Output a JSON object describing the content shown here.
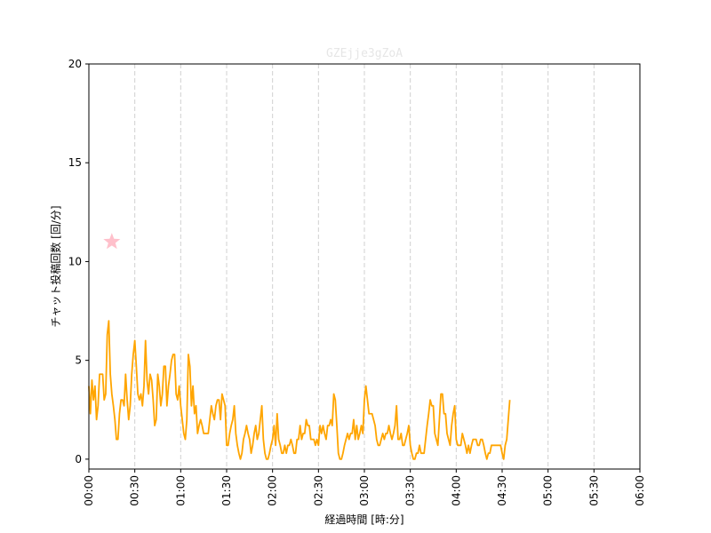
{
  "chart_data": {
    "type": "line",
    "title": "GZEjje3gZoA",
    "xlabel": "経過時間 [時:分]",
    "ylabel": "チャット投稿回数 [回/分]",
    "xlim": [
      0,
      360
    ],
    "ylim": [
      -0.5,
      20
    ],
    "x_ticks": [
      {
        "value": 0,
        "label": "00:00"
      },
      {
        "value": 30,
        "label": "00:30"
      },
      {
        "value": 60,
        "label": "01:00"
      },
      {
        "value": 90,
        "label": "01:30"
      },
      {
        "value": 120,
        "label": "02:00"
      },
      {
        "value": 150,
        "label": "02:30"
      },
      {
        "value": 180,
        "label": "03:00"
      },
      {
        "value": 210,
        "label": "03:30"
      },
      {
        "value": 240,
        "label": "04:00"
      },
      {
        "value": 270,
        "label": "04:30"
      },
      {
        "value": 300,
        "label": "05:00"
      },
      {
        "value": 330,
        "label": "05:30"
      },
      {
        "value": 360,
        "label": "06:00"
      }
    ],
    "y_ticks": [
      0,
      5,
      10,
      15,
      20
    ],
    "grid": "vertical dashed",
    "series": [
      {
        "color": "#FFA500",
        "points": [
          [
            0,
            3.7
          ],
          [
            1,
            2.3
          ],
          [
            2,
            4.0
          ],
          [
            3,
            3.0
          ],
          [
            4,
            3.7
          ],
          [
            5,
            2.0
          ],
          [
            6,
            2.7
          ],
          [
            7,
            4.3
          ],
          [
            8,
            4.3
          ],
          [
            9,
            4.3
          ],
          [
            10,
            3.0
          ],
          [
            11,
            3.3
          ],
          [
            12,
            6.3
          ],
          [
            13,
            7.0
          ],
          [
            14,
            4.3
          ],
          [
            15,
            3.3
          ],
          [
            16,
            2.7
          ],
          [
            17,
            2.0
          ],
          [
            18,
            1.0
          ],
          [
            19,
            1.0
          ],
          [
            20,
            2.3
          ],
          [
            21,
            3.0
          ],
          [
            22,
            3.0
          ],
          [
            23,
            2.7
          ],
          [
            24,
            4.3
          ],
          [
            25,
            3.0
          ],
          [
            26,
            2.0
          ],
          [
            27,
            2.7
          ],
          [
            28,
            4.3
          ],
          [
            29,
            5.3
          ],
          [
            30,
            6.0
          ],
          [
            31,
            4.7
          ],
          [
            32,
            3.3
          ],
          [
            33,
            3.0
          ],
          [
            34,
            3.3
          ],
          [
            35,
            2.7
          ],
          [
            36,
            3.7
          ],
          [
            37,
            6.0
          ],
          [
            38,
            4.0
          ],
          [
            39,
            3.3
          ],
          [
            40,
            4.3
          ],
          [
            41,
            4.0
          ],
          [
            42,
            3.0
          ],
          [
            43,
            1.7
          ],
          [
            44,
            2.0
          ],
          [
            45,
            4.3
          ],
          [
            46,
            3.7
          ],
          [
            47,
            2.7
          ],
          [
            48,
            3.3
          ],
          [
            49,
            4.7
          ],
          [
            50,
            4.7
          ],
          [
            51,
            2.7
          ],
          [
            52,
            3.7
          ],
          [
            53,
            4.3
          ],
          [
            54,
            5.0
          ],
          [
            55,
            5.3
          ],
          [
            56,
            5.3
          ],
          [
            57,
            3.3
          ],
          [
            58,
            3.0
          ],
          [
            59,
            3.7
          ],
          [
            60,
            2.7
          ],
          [
            61,
            2.0
          ],
          [
            62,
            1.3
          ],
          [
            63,
            1.0
          ],
          [
            64,
            2.0
          ],
          [
            65,
            5.3
          ],
          [
            66,
            4.7
          ],
          [
            67,
            2.7
          ],
          [
            68,
            3.7
          ],
          [
            69,
            2.3
          ],
          [
            70,
            2.7
          ],
          [
            71,
            1.3
          ],
          [
            72,
            1.7
          ],
          [
            73,
            2.0
          ],
          [
            74,
            1.7
          ],
          [
            75,
            1.3
          ],
          [
            76,
            1.3
          ],
          [
            77,
            1.3
          ],
          [
            78,
            1.3
          ],
          [
            79,
            2.0
          ],
          [
            80,
            2.7
          ],
          [
            81,
            2.3
          ],
          [
            82,
            2.0
          ],
          [
            83,
            2.7
          ],
          [
            84,
            3.0
          ],
          [
            85,
            3.0
          ],
          [
            86,
            2.0
          ],
          [
            87,
            3.3
          ],
          [
            88,
            3.0
          ],
          [
            89,
            2.7
          ],
          [
            90,
            0.7
          ],
          [
            91,
            0.7
          ],
          [
            92,
            1.3
          ],
          [
            93,
            1.7
          ],
          [
            94,
            2.0
          ],
          [
            95,
            2.7
          ],
          [
            96,
            1.3
          ],
          [
            97,
            0.7
          ],
          [
            98,
            0.3
          ],
          [
            99,
            0.0
          ],
          [
            100,
            0.3
          ],
          [
            101,
            1.0
          ],
          [
            102,
            1.3
          ],
          [
            103,
            1.7
          ],
          [
            104,
            1.3
          ],
          [
            105,
            1.0
          ],
          [
            106,
            0.3
          ],
          [
            107,
            0.7
          ],
          [
            108,
            1.3
          ],
          [
            109,
            1.7
          ],
          [
            110,
            1.0
          ],
          [
            111,
            1.3
          ],
          [
            112,
            2.0
          ],
          [
            113,
            2.7
          ],
          [
            114,
            1.0
          ],
          [
            115,
            0.3
          ],
          [
            116,
            0.0
          ],
          [
            117,
            0.0
          ],
          [
            118,
            0.3
          ],
          [
            119,
            0.7
          ],
          [
            120,
            1.0
          ],
          [
            121,
            1.7
          ],
          [
            122,
            0.7
          ],
          [
            123,
            2.3
          ],
          [
            124,
            1.0
          ],
          [
            125,
            0.7
          ],
          [
            126,
            0.3
          ],
          [
            127,
            0.3
          ],
          [
            128,
            0.7
          ],
          [
            129,
            0.3
          ],
          [
            130,
            0.7
          ],
          [
            131,
            0.7
          ],
          [
            132,
            1.0
          ],
          [
            133,
            0.7
          ],
          [
            134,
            0.3
          ],
          [
            135,
            0.3
          ],
          [
            136,
            1.0
          ],
          [
            137,
            1.0
          ],
          [
            138,
            1.7
          ],
          [
            139,
            1.0
          ],
          [
            140,
            1.3
          ],
          [
            141,
            1.3
          ],
          [
            142,
            2.0
          ],
          [
            143,
            1.7
          ],
          [
            144,
            1.7
          ],
          [
            145,
            1.0
          ],
          [
            146,
            1.0
          ],
          [
            147,
            1.0
          ],
          [
            148,
            0.7
          ],
          [
            149,
            1.0
          ],
          [
            150,
            0.7
          ],
          [
            151,
            1.7
          ],
          [
            152,
            1.3
          ],
          [
            153,
            1.7
          ],
          [
            154,
            1.3
          ],
          [
            155,
            1.0
          ],
          [
            156,
            1.7
          ],
          [
            157,
            1.7
          ],
          [
            158,
            2.0
          ],
          [
            159,
            1.7
          ],
          [
            160,
            3.3
          ],
          [
            161,
            3.0
          ],
          [
            162,
            1.7
          ],
          [
            163,
            0.3
          ],
          [
            164,
            0.0
          ],
          [
            165,
            0.0
          ],
          [
            166,
            0.3
          ],
          [
            167,
            0.7
          ],
          [
            168,
            1.0
          ],
          [
            169,
            1.3
          ],
          [
            170,
            1.0
          ],
          [
            171,
            1.3
          ],
          [
            172,
            1.3
          ],
          [
            173,
            2.0
          ],
          [
            174,
            1.0
          ],
          [
            175,
            1.7
          ],
          [
            176,
            1.0
          ],
          [
            177,
            1.3
          ],
          [
            178,
            1.7
          ],
          [
            179,
            1.3
          ],
          [
            180,
            3.0
          ],
          [
            181,
            3.7
          ],
          [
            182,
            3.0
          ],
          [
            183,
            2.3
          ],
          [
            184,
            2.3
          ],
          [
            185,
            2.3
          ],
          [
            186,
            2.0
          ],
          [
            187,
            1.7
          ],
          [
            188,
            1.0
          ],
          [
            189,
            0.7
          ],
          [
            190,
            0.7
          ],
          [
            191,
            1.0
          ],
          [
            192,
            1.3
          ],
          [
            193,
            1.0
          ],
          [
            194,
            1.3
          ],
          [
            195,
            1.3
          ],
          [
            196,
            1.7
          ],
          [
            197,
            1.3
          ],
          [
            198,
            1.0
          ],
          [
            199,
            1.3
          ],
          [
            200,
            1.7
          ],
          [
            201,
            2.7
          ],
          [
            202,
            1.0
          ],
          [
            203,
            1.0
          ],
          [
            204,
            1.3
          ],
          [
            205,
            0.7
          ],
          [
            206,
            0.7
          ],
          [
            207,
            1.0
          ],
          [
            208,
            1.3
          ],
          [
            209,
            1.7
          ],
          [
            210,
            0.7
          ],
          [
            211,
            0.3
          ],
          [
            212,
            0.0
          ],
          [
            213,
            0.0
          ],
          [
            214,
            0.3
          ],
          [
            215,
            0.3
          ],
          [
            216,
            0.7
          ],
          [
            217,
            0.3
          ],
          [
            218,
            0.3
          ],
          [
            219,
            0.3
          ],
          [
            220,
            1.0
          ],
          [
            221,
            1.7
          ],
          [
            222,
            2.3
          ],
          [
            223,
            3.0
          ],
          [
            224,
            2.7
          ],
          [
            225,
            2.7
          ],
          [
            226,
            1.3
          ],
          [
            227,
            1.0
          ],
          [
            228,
            0.7
          ],
          [
            229,
            2.0
          ],
          [
            230,
            3.3
          ],
          [
            231,
            3.3
          ],
          [
            232,
            2.3
          ],
          [
            233,
            2.3
          ],
          [
            234,
            1.3
          ],
          [
            235,
            1.0
          ],
          [
            236,
            0.7
          ],
          [
            237,
            1.7
          ],
          [
            238,
            2.3
          ],
          [
            239,
            2.7
          ],
          [
            240,
            1.0
          ],
          [
            241,
            0.7
          ],
          [
            242,
            0.7
          ],
          [
            243,
            0.7
          ],
          [
            244,
            1.3
          ],
          [
            245,
            1.0
          ],
          [
            246,
            0.7
          ],
          [
            247,
            0.3
          ],
          [
            248,
            0.7
          ],
          [
            249,
            0.3
          ],
          [
            250,
            0.7
          ],
          [
            251,
            1.0
          ],
          [
            252,
            1.0
          ],
          [
            253,
            1.0
          ],
          [
            254,
            0.7
          ],
          [
            255,
            0.7
          ],
          [
            256,
            1.0
          ],
          [
            257,
            1.0
          ],
          [
            258,
            0.7
          ],
          [
            259,
            0.3
          ],
          [
            260,
            0.0
          ],
          [
            261,
            0.3
          ],
          [
            262,
            0.3
          ],
          [
            263,
            0.7
          ],
          [
            264,
            0.7
          ],
          [
            265,
            0.7
          ],
          [
            266,
            0.7
          ],
          [
            267,
            0.7
          ],
          [
            268,
            0.7
          ],
          [
            269,
            0.7
          ],
          [
            270,
            0.3
          ],
          [
            271,
            0.0
          ],
          [
            272,
            0.7
          ],
          [
            273,
            1.0
          ],
          [
            274,
            2.0
          ],
          [
            275,
            3.0
          ]
        ]
      }
    ],
    "annotations": [
      {
        "type": "star-marker",
        "x": 15,
        "y": 11.0,
        "color": "#FFC0CB"
      }
    ]
  }
}
